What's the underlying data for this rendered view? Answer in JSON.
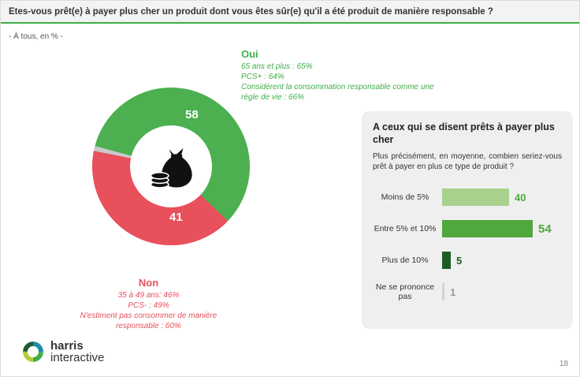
{
  "colors": {
    "oui_green": "#4cb050",
    "non_red": "#e8505b",
    "nsp_gray": "#c9c9c9",
    "title_underline": "#3fae49",
    "panel_bg": "#efefef"
  },
  "header": {
    "title": "Etes-vous prêt(e) à payer plus cher un produit dont vous êtes sûr(e) qu'il a été produit de manière responsable ?",
    "subtitle": "- À tous, en % -"
  },
  "donut": {
    "oui_label": "Oui",
    "oui_value": "58",
    "oui_notes": [
      "65 ans et plus : 65%",
      "PCS+ : 64%",
      "Considèrent la consommation responsable comme une règle de vie : 66%"
    ],
    "non_label": "Non",
    "non_value": "41",
    "non_notes": [
      "35 à 49 ans: 46%",
      "PCS- : 49%",
      "N'estiment pas consommer de manière responsable : 60%"
    ],
    "center_icon": "money-bag-icon"
  },
  "panel": {
    "title": "A ceux qui se disent prêts à payer plus cher",
    "question": "Plus précisément, en moyenne, combien seriez-vous prêt à payer en plus ce type de produit ?",
    "bars": [
      {
        "label": "Moins de 5%",
        "value": "40",
        "color": "#a9d18e",
        "value_color": "#4fa83d"
      },
      {
        "label": "Entre 5% et 10%",
        "value": "54",
        "color": "#4fa83d",
        "value_color": "#4fa83d"
      },
      {
        "label": "Plus de 10%",
        "value": "5",
        "color": "#1e5c24",
        "value_color": "#1e5c24"
      },
      {
        "label": "Ne se prononce pas",
        "value": "1",
        "color": "#d2d2d2",
        "value_color": "#9a9a9a"
      }
    ]
  },
  "footer": {
    "logo_line1": "harris",
    "logo_line2": "interactive",
    "page_number": "18"
  },
  "chart_data": [
    {
      "type": "pie",
      "donut": true,
      "title": "Etes-vous prêt(e) à payer plus cher un produit dont vous êtes sûr(e) qu'il a été produit de manière responsable ? (À tous, en %)",
      "categories": [
        "Oui",
        "Non",
        "Ne se prononce pas"
      ],
      "values": [
        58,
        41,
        1
      ],
      "colors": [
        "#4cb050",
        "#e8505b",
        "#c9c9c9"
      ],
      "start_angle_deg_from_top": 285,
      "legend_position": "none"
    },
    {
      "type": "bar",
      "orientation": "horizontal",
      "title": "A ceux qui se disent prêts à payer plus cher : Plus précisément, en moyenne, combien seriez-vous prêt à payer en plus ce type de produit ?",
      "categories": [
        "Moins de 5%",
        "Entre 5% et 10%",
        "Plus de 10%",
        "Ne se prononce pas"
      ],
      "values": [
        40,
        54,
        5,
        1
      ],
      "xlabel": "",
      "ylabel": "",
      "xlim": [
        0,
        60
      ],
      "grid": false,
      "data_labels": true
    }
  ]
}
